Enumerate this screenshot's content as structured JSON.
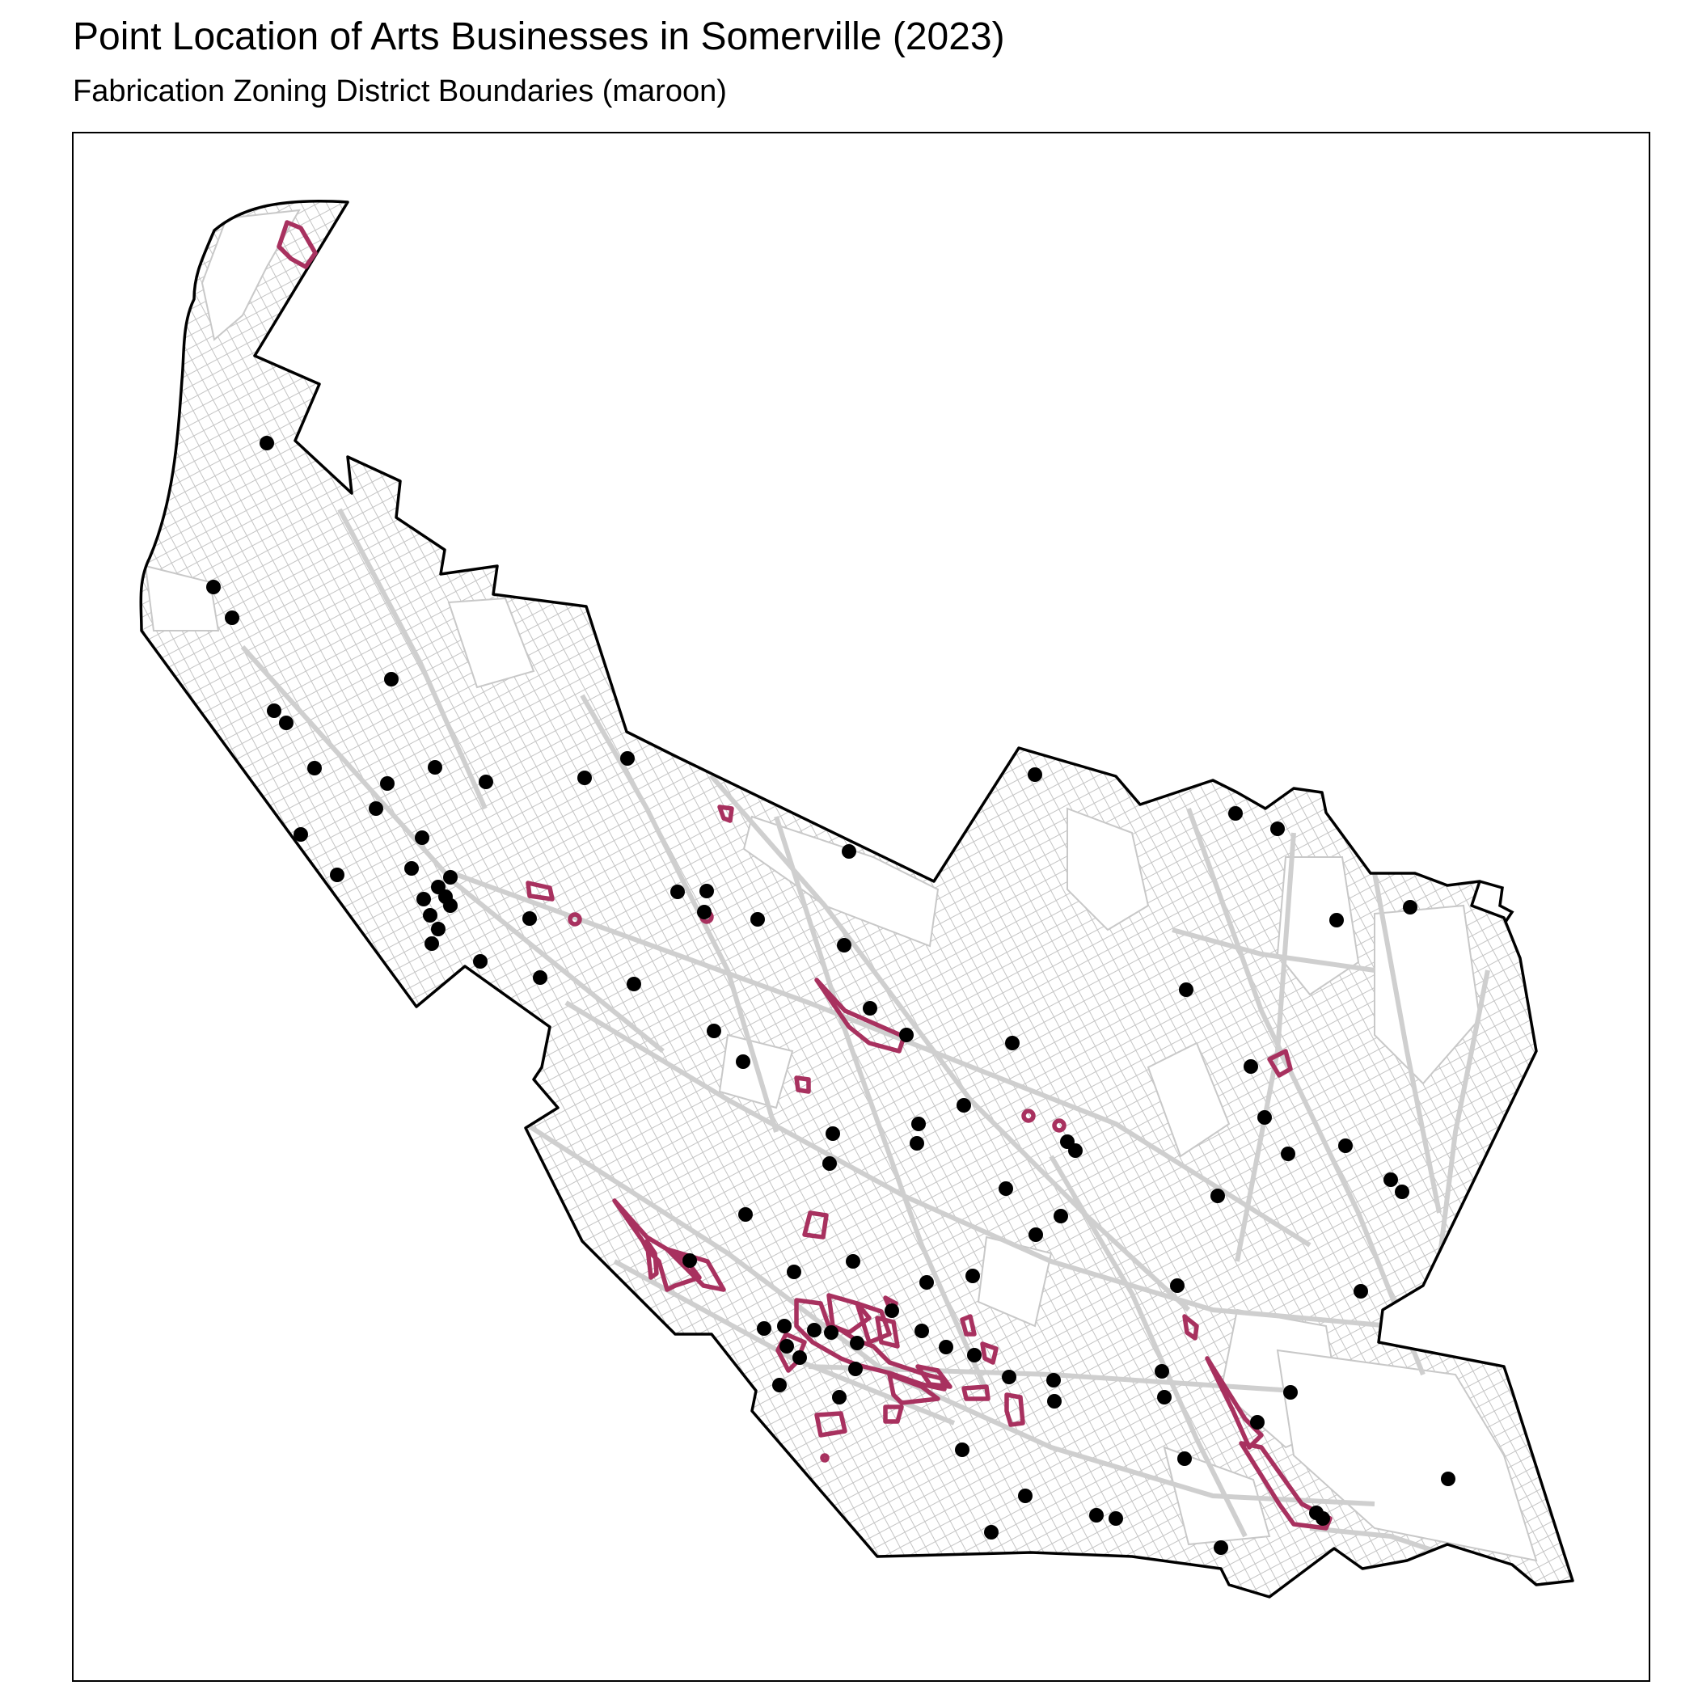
{
  "title": "Point Location of Arts Businesses in Somerville (2023)",
  "subtitle": "Fabrication Zoning District Boundaries (maroon)",
  "colors": {
    "boundary": "#000000",
    "streets": "#bdbdbd",
    "zones": "#a8315f",
    "points": "#000000",
    "frame": "#000000"
  },
  "business_point_count": 102
}
